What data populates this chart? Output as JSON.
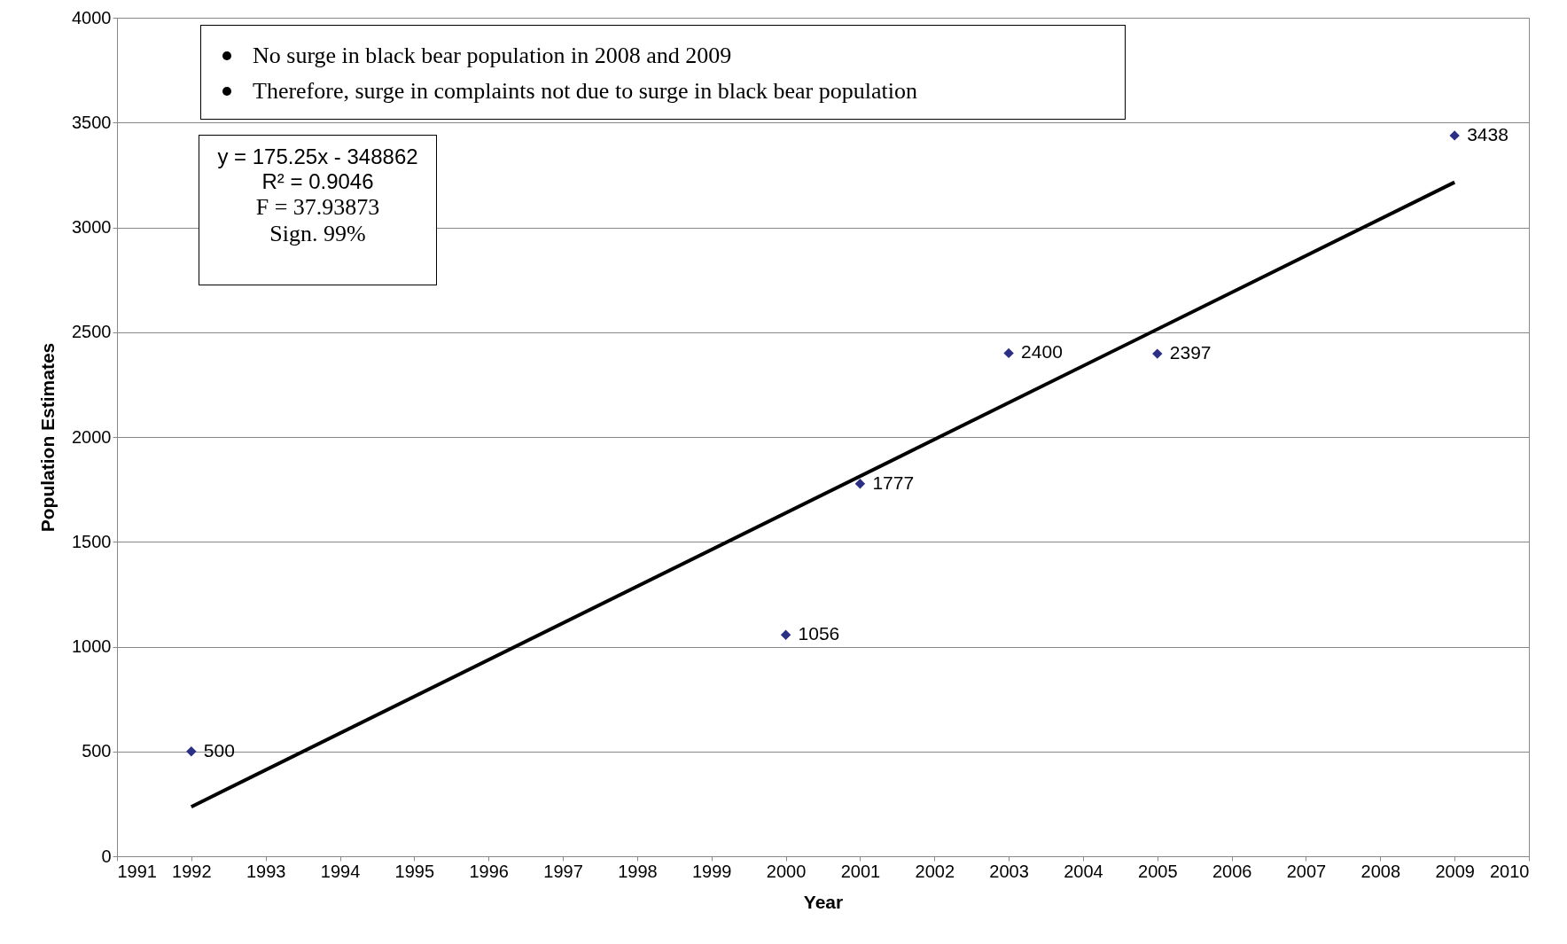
{
  "chart_data": {
    "type": "scatter",
    "xlabel": "Year",
    "ylabel": "Population Estimates",
    "series": [
      {
        "color": "#2b2f86",
        "marker": "diamond",
        "x": [
          1992,
          2000,
          2001,
          2003,
          2005,
          2009
        ],
        "values": [
          500,
          1056,
          1777,
          2400,
          2397,
          3438
        ],
        "value_labels": [
          "500",
          "1056",
          "1777",
          "2400",
          "2397",
          "3438"
        ]
      },
      {
        "type": "line",
        "marker": "none",
        "color": "#000000",
        "x": [
          1992,
          2009
        ],
        "values": [
          236,
          3215
        ]
      }
    ],
    "grid": "y",
    "xlim": [
      1991,
      2010
    ],
    "xticks": [
      1991,
      1992,
      1993,
      1994,
      1995,
      1996,
      1997,
      1998,
      1999,
      2000,
      2001,
      2002,
      2003,
      2004,
      2005,
      2006,
      2007,
      2008,
      2009,
      2010
    ],
    "ylim": [
      0,
      4000
    ],
    "yticks": [
      0,
      500,
      1000,
      1500,
      2000,
      2500,
      3000,
      3500,
      4000
    ],
    "annotations": [
      "No surge in black bear population in 2008 and 2009",
      "Therefore, surge in complaints not due to surge in black bear population",
      "y = 175.25x - 348862",
      "R² = 0.9046",
      "F = 37.93873",
      "Sign. 99%"
    ]
  }
}
